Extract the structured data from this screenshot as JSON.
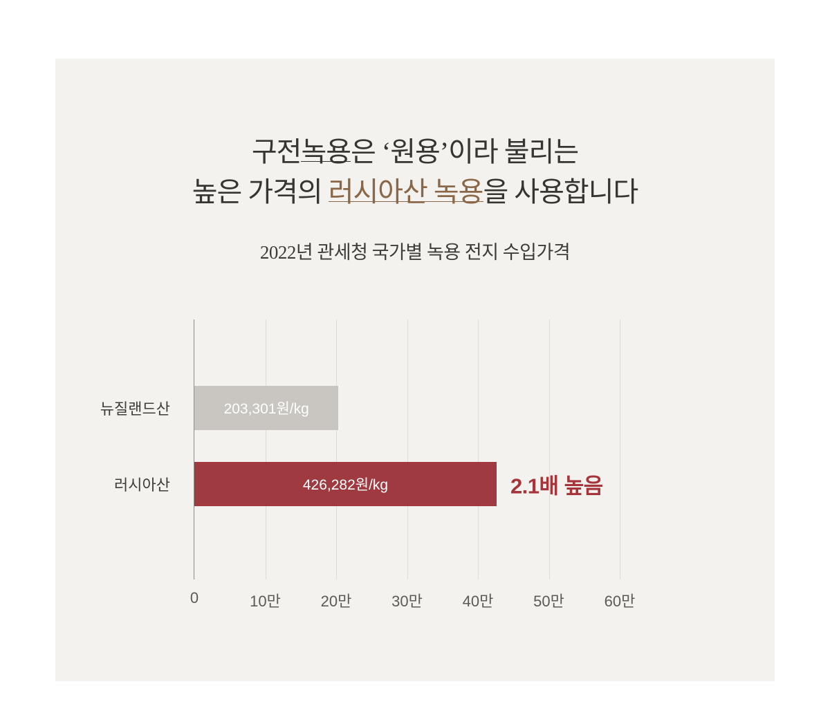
{
  "page": {
    "title_line1_pre": "구전",
    "title_line1_scored": "녹용",
    "title_line1_post": "은 ‘원용’이라 불리는",
    "title_line2_pre": "높은 가격의 ",
    "title_line2_accent": "러시아산 녹용",
    "title_line2_post": "을 사용합니다",
    "subtitle": "2022년 관세청 국가별 녹용 전지 수입가격"
  },
  "colors": {
    "accent_text": "#8a6748",
    "card_background": "#f4f2ef",
    "annotation_red": "#a5353b"
  },
  "chart_data": {
    "type": "bar",
    "orientation": "horizontal",
    "title": "2022년 관세청 국가별 녹용 전지 수입가격",
    "categories": [
      "뉴질랜드산",
      "러시아산"
    ],
    "values": [
      203301,
      426282
    ],
    "value_labels": [
      "203,301원/kg",
      "426,282원/kg"
    ],
    "bar_colors": [
      "#c9c6c2",
      "#9e3a40"
    ],
    "annotation": {
      "row": 1,
      "text": "2.1배 높음",
      "color": "#a5353b"
    },
    "x_ticks": [
      "0",
      "10만",
      "20만",
      "30만",
      "40만",
      "50만",
      "60만"
    ],
    "x_tick_values": [
      0,
      100000,
      200000,
      300000,
      400000,
      500000,
      600000
    ],
    "xlim": [
      0,
      600000
    ],
    "grid": true,
    "legend": "none"
  }
}
